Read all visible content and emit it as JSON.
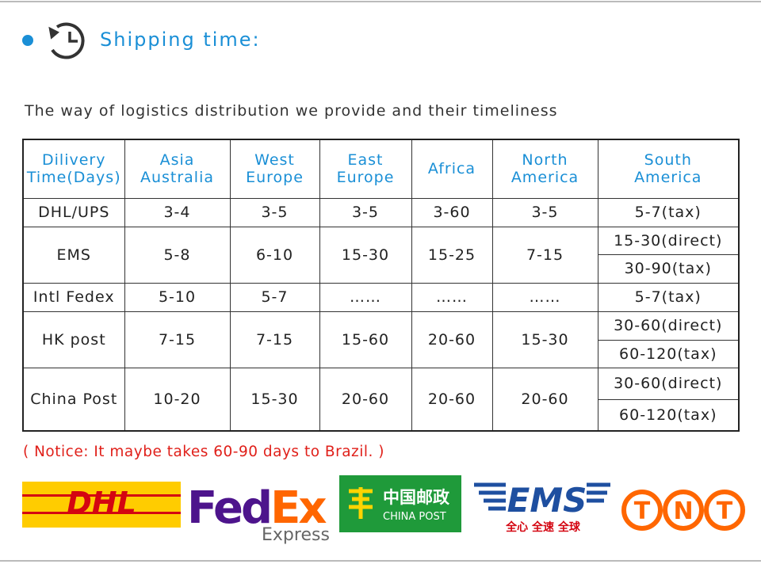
{
  "header": {
    "title": "Shipping time:",
    "subtitle": "The way of logistics distribution we provide and their timeliness"
  },
  "table": {
    "columns": [
      [
        "Dilivery",
        "Time(Days)"
      ],
      [
        "Asia",
        "Australia"
      ],
      [
        "West",
        "Europe"
      ],
      [
        "East",
        "Europe"
      ],
      [
        "Africa"
      ],
      [
        "North",
        "America"
      ],
      [
        "South",
        "America"
      ]
    ],
    "rows": [
      {
        "name": "DHL/UPS",
        "values": [
          "3-4",
          "3-5",
          "3-5",
          "3-60",
          "3-5"
        ],
        "south": [
          "5-7(tax)"
        ]
      },
      {
        "name": "EMS",
        "values": [
          "5-8",
          "6-10",
          "15-30",
          "15-25",
          "7-15"
        ],
        "south": [
          "15-30(direct)",
          "30-90(tax)"
        ]
      },
      {
        "name": "Intl Fedex",
        "values": [
          "5-10",
          "5-7",
          "……",
          "……",
          "……"
        ],
        "south": [
          "5-7(tax)"
        ]
      },
      {
        "name": "HK post",
        "values": [
          "7-15",
          "7-15",
          "15-60",
          "20-60",
          "15-30"
        ],
        "south": [
          "30-60(direct)",
          "60-120(tax)"
        ]
      },
      {
        "name": "China Post",
        "values": [
          "10-20",
          "15-30",
          "20-60",
          "20-60",
          "20-60"
        ],
        "south": [
          "30-60(direct)",
          "60-120(tax)"
        ]
      }
    ]
  },
  "notice": "( Notice: It maybe takes 60-90 days to Brazil. )",
  "logos": {
    "dhl": "DHL",
    "fedex": [
      "Fed",
      "Ex"
    ],
    "fedex_sub": "Express",
    "china_post_cn": "中国邮政",
    "china_post_en": "CHINA POST",
    "ems": "EMS",
    "ems_sub": "全心 全速 全球",
    "tnt": [
      "T",
      "N",
      "T"
    ]
  }
}
